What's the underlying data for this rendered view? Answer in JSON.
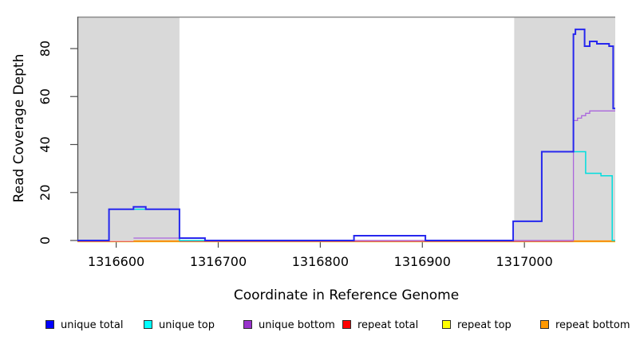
{
  "chart_data": {
    "type": "line",
    "subtype": "step",
    "title": "",
    "xlabel": "Coordinate in Reference Genome",
    "ylabel": "Read Coverage Depth",
    "xlim": [
      1316562,
      1317089
    ],
    "ylim": [
      0,
      93
    ],
    "x_ticks": [
      1316600,
      1316700,
      1316800,
      1316900,
      1317000
    ],
    "y_ticks": [
      0,
      20,
      40,
      60,
      80
    ],
    "grid": false,
    "legend_position": "bottom",
    "background_regions": [
      {
        "name": "repeat-region-left",
        "x0": 1316562,
        "x1": 1316662,
        "color": "#d9d9d9"
      },
      {
        "name": "repeat-region-right",
        "x0": 1316990,
        "x1": 1317089,
        "color": "#d9d9d9"
      }
    ],
    "series": [
      {
        "name": "unique total",
        "color": "#2727ee",
        "line_width": 2,
        "segments": [
          [
            [
              1316562,
              0
            ],
            [
              1316593,
              13
            ],
            [
              1316617,
              14
            ],
            [
              1316629,
              13
            ],
            [
              1316662,
              1
            ],
            [
              1316687,
              0
            ],
            [
              1316833,
              2
            ],
            [
              1316903,
              0
            ],
            [
              1316989,
              8
            ],
            [
              1317017,
              37
            ],
            [
              1317048,
              86
            ],
            [
              1317050,
              88
            ],
            [
              1317059,
              81
            ],
            [
              1317064,
              83
            ],
            [
              1317071,
              82
            ],
            [
              1317083,
              81
            ],
            [
              1317087,
              55
            ],
            [
              1317089,
              55
            ]
          ]
        ]
      },
      {
        "name": "unique top",
        "color": "#00dede",
        "line_width": 1.5,
        "segments": [
          [
            [
              1316562,
              0
            ],
            [
              1316593,
              13
            ],
            [
              1316662,
              0
            ],
            [
              1316833,
              2
            ],
            [
              1316903,
              0
            ],
            [
              1316989,
              8
            ],
            [
              1317017,
              37
            ],
            [
              1317060,
              28
            ],
            [
              1317075,
              27
            ],
            [
              1317086,
              0
            ],
            [
              1317089,
              0
            ]
          ]
        ]
      },
      {
        "name": "unique bottom",
        "color": "#aa66dd",
        "line_width": 1.3,
        "segments": [
          [
            [
              1316617,
              1
            ],
            [
              1316687,
              0
            ],
            [
              1317048,
              50
            ],
            [
              1317052,
              51
            ],
            [
              1317056,
              52
            ],
            [
              1317060,
              53
            ],
            [
              1317064,
              54
            ],
            [
              1317089,
              54
            ]
          ]
        ]
      },
      {
        "name": "repeat total",
        "color": "#e23b4e",
        "line_width": 1.2,
        "segments": [
          [
            [
              1316562,
              0
            ],
            [
              1317089,
              0
            ]
          ]
        ]
      },
      {
        "name": "repeat top",
        "color": "#eded2a",
        "line_width": 1.1,
        "segments": [
          [
            [
              1316562,
              0
            ],
            [
              1317089,
              0
            ]
          ]
        ]
      },
      {
        "name": "repeat bottom",
        "color": "#ff9100",
        "line_width": 1.6,
        "segments": [
          [
            [
              1316617,
              0
            ],
            [
              1316662,
              0
            ]
          ],
          [
            [
              1317048,
              0
            ],
            [
              1317089,
              0
            ]
          ]
        ]
      }
    ]
  },
  "legend": {
    "items": [
      {
        "label": "unique total",
        "swatch_color": "#0000ff"
      },
      {
        "label": "unique top",
        "swatch_color": "#00ffff"
      },
      {
        "label": "unique bottom",
        "swatch_color": "#9933cc"
      },
      {
        "label": "repeat total",
        "swatch_color": "#ff0000"
      },
      {
        "label": "repeat top",
        "swatch_color": "#ffff00"
      },
      {
        "label": "repeat bottom",
        "swatch_color": "#ff9900"
      }
    ]
  }
}
